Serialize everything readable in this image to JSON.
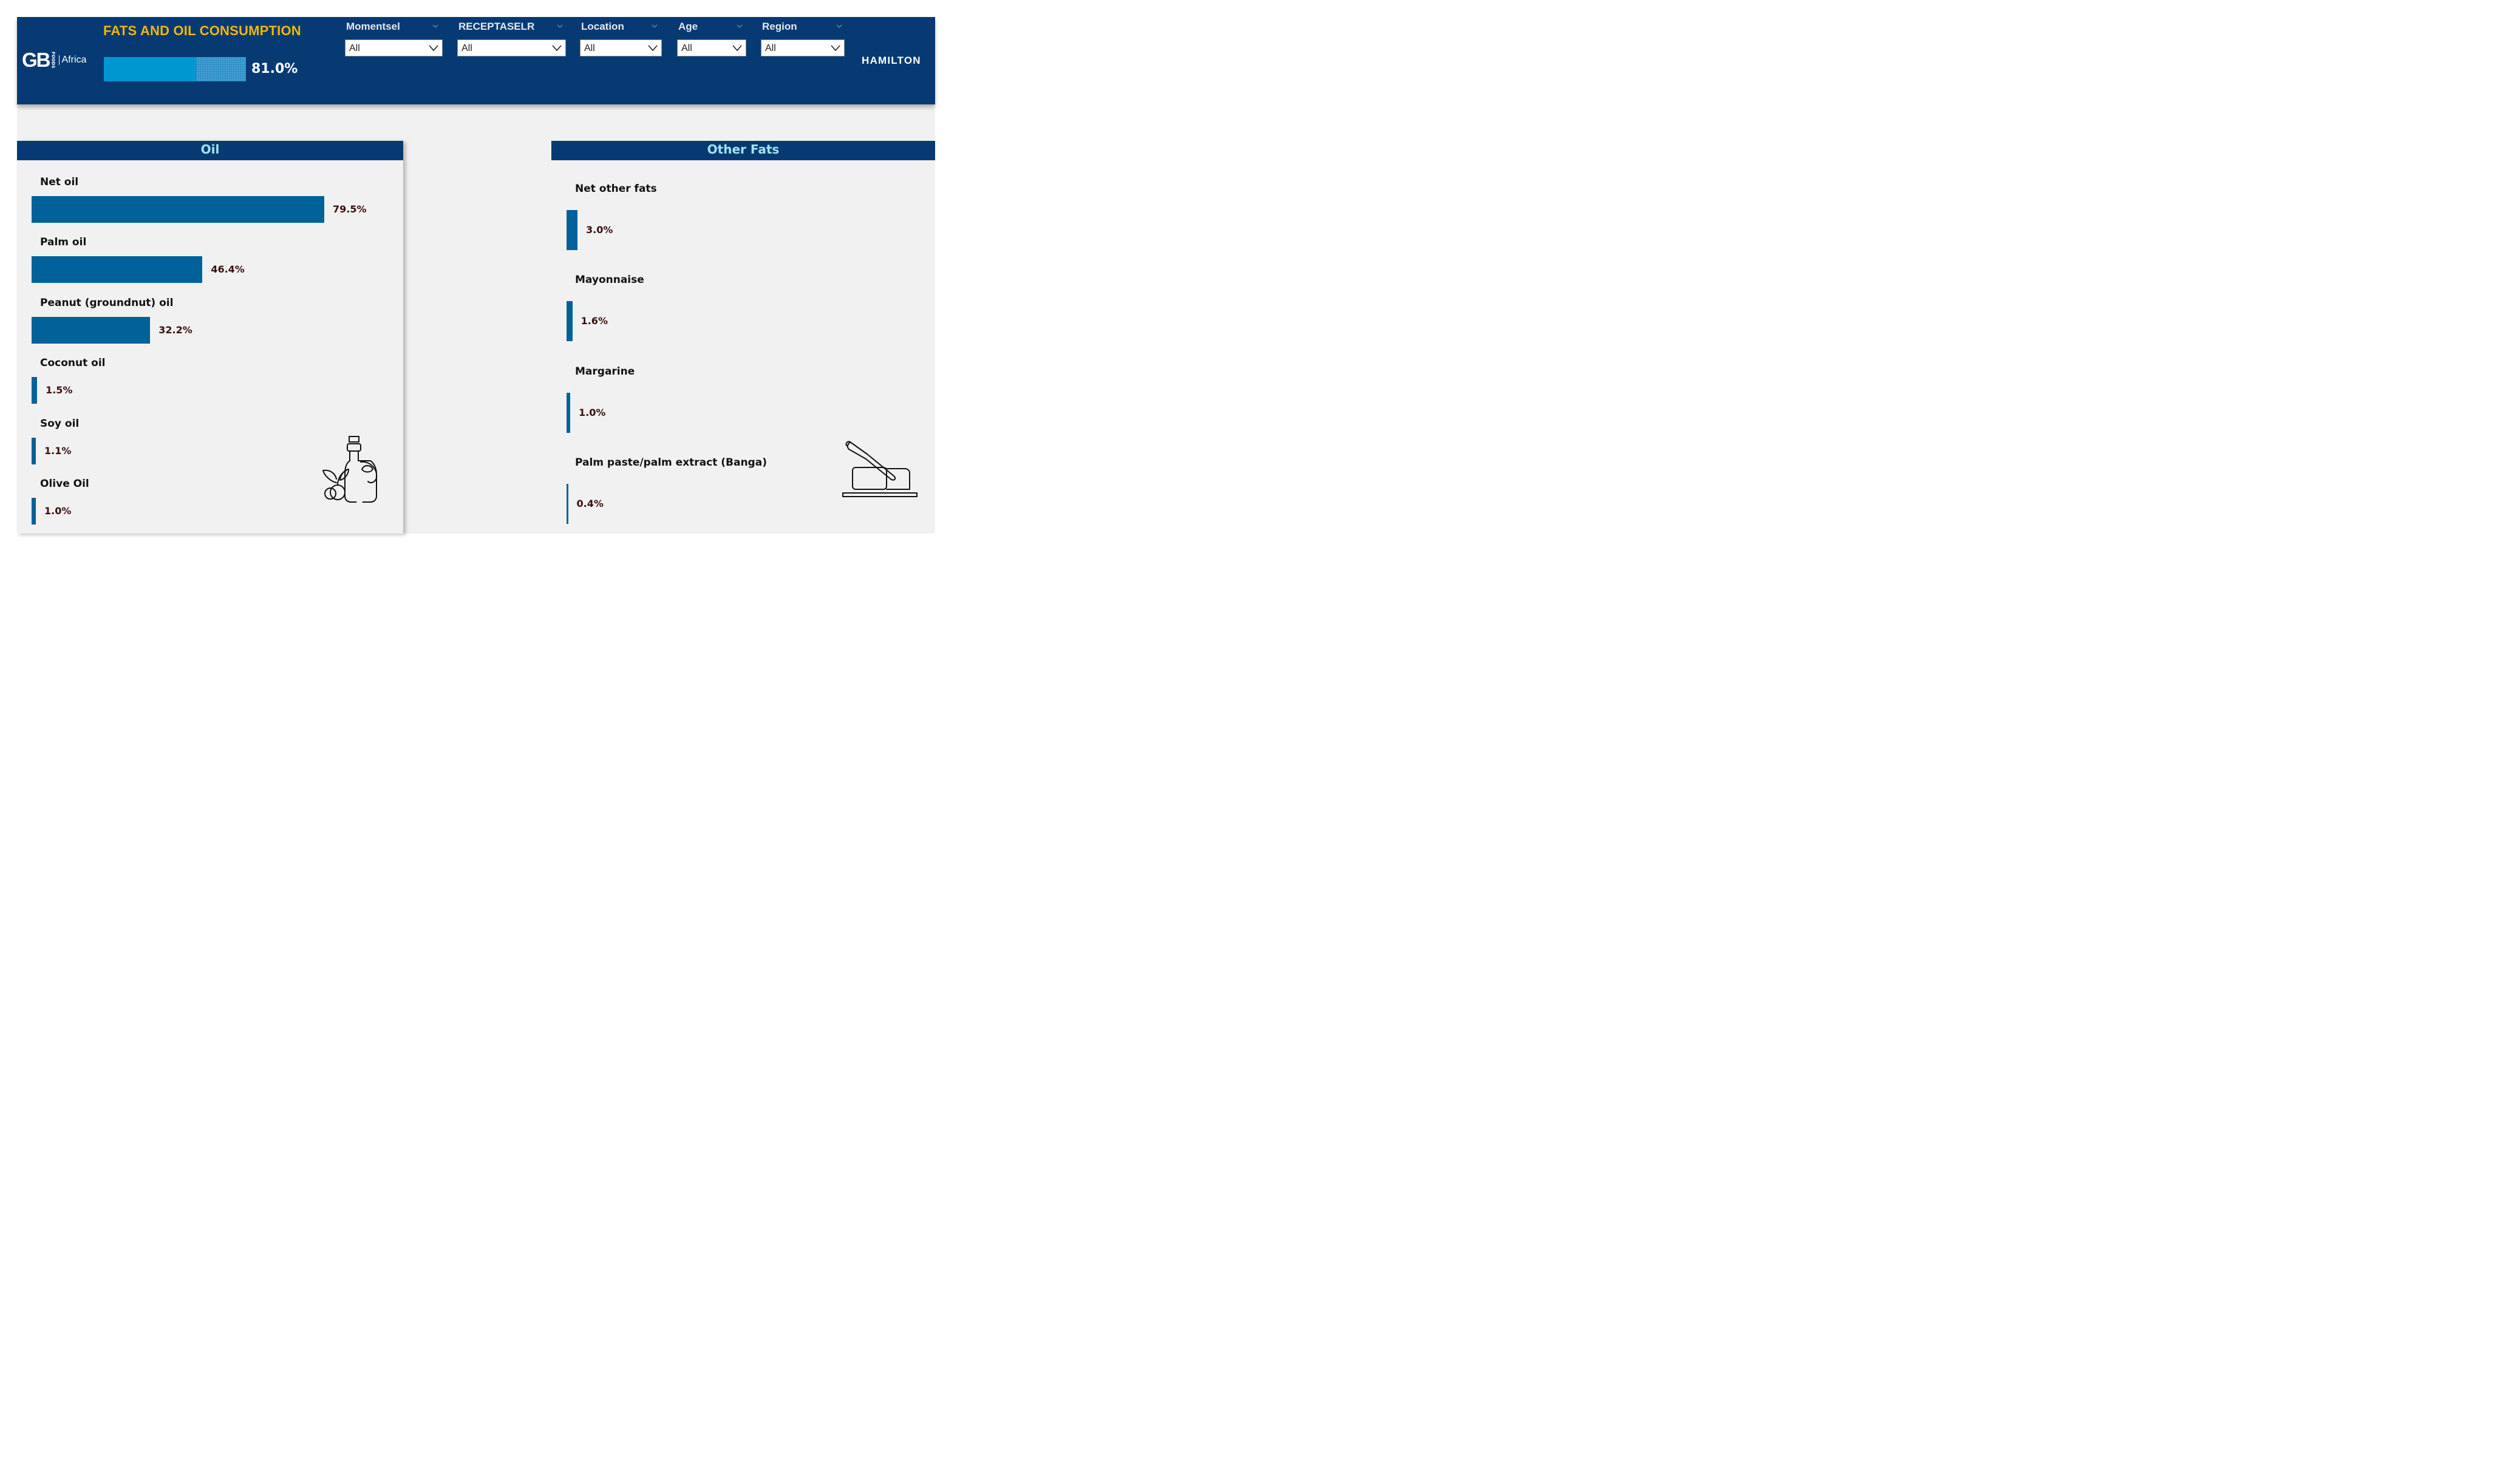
{
  "header": {
    "logo": {
      "brand": "GB",
      "subbrand": "FOODS",
      "region": "Africa"
    },
    "title": "FATS AND OIL CONSUMPTION",
    "progress": {
      "fraction": 0.81,
      "label": "81.0%"
    },
    "filters": [
      {
        "label": "Momentsel",
        "value": "All"
      },
      {
        "label": "RECEPTASELR",
        "value": "All"
      },
      {
        "label": "Location",
        "value": "All"
      },
      {
        "label": "Age",
        "value": "All"
      },
      {
        "label": "Region",
        "value": "All"
      }
    ],
    "city": "HAMILTON"
  },
  "oil": {
    "title": "Oil",
    "icon": "oil-bottle-icon",
    "items": [
      {
        "label": "Net oil",
        "value": 79.5,
        "value_label": "79.5%"
      },
      {
        "label": "Palm oil",
        "value": 46.4,
        "value_label": "46.4%"
      },
      {
        "label": "Peanut (groundnut) oil",
        "value": 32.2,
        "value_label": "32.2%"
      },
      {
        "label": "Coconut oil",
        "value": 1.5,
        "value_label": "1.5%"
      },
      {
        "label": "Soy oil",
        "value": 1.1,
        "value_label": "1.1%"
      },
      {
        "label": "Olive Oil",
        "value": 1.0,
        "value_label": "1.0%"
      }
    ]
  },
  "other_fats": {
    "title": "Other Fats",
    "icon": "butter-knife-icon",
    "items": [
      {
        "label": "Net other fats",
        "value": 3.0,
        "value_label": "3.0%"
      },
      {
        "label": "Mayonnaise",
        "value": 1.6,
        "value_label": "1.6%"
      },
      {
        "label": "Margarine",
        "value": 1.0,
        "value_label": "1.0%"
      },
      {
        "label": "Palm paste/palm extract (Banga)",
        "value": 0.4,
        "value_label": "0.4%"
      }
    ]
  },
  "colors": {
    "header_bg": "#073a72",
    "title": "#f2b705",
    "bar": "#006298",
    "progress": "#0097d1",
    "panel_title": "#9fe3f7",
    "value_text": "#3a0f0f"
  }
}
